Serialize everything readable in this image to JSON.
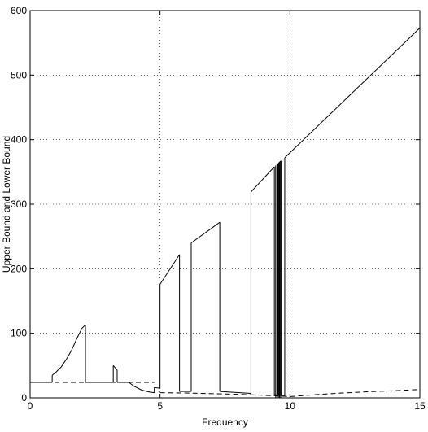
{
  "chart_data": {
    "type": "line",
    "title": "",
    "xlabel": "Frequency",
    "ylabel": "Upper Bound and Lower Bound",
    "xlim": [
      0,
      15
    ],
    "ylim": [
      0,
      600
    ],
    "x_ticks": [
      0,
      5,
      10,
      15
    ],
    "y_ticks": [
      0,
      100,
      200,
      300,
      400,
      500,
      600
    ],
    "x_tick_labels": [
      "0",
      "5",
      "10",
      "15"
    ],
    "y_tick_labels": [
      "0",
      "100",
      "200",
      "300",
      "400",
      "500",
      "600"
    ],
    "grid": true,
    "legend": "none",
    "series": [
      {
        "style": "solid",
        "segments": [
          [
            [
              0,
              24
            ],
            [
              0.85,
              24
            ]
          ],
          [
            [
              0.85,
              35
            ],
            [
              1.0,
              40
            ],
            [
              1.2,
              48
            ],
            [
              1.4,
              60
            ],
            [
              1.6,
              74
            ],
            [
              1.8,
              92
            ],
            [
              2.0,
              108
            ],
            [
              2.13,
              113
            ]
          ],
          [
            [
              2.13,
              24
            ],
            [
              3.2,
              24
            ]
          ],
          [
            [
              3.2,
              50
            ],
            [
              3.35,
              43
            ]
          ],
          [
            [
              3.35,
              24
            ],
            [
              3.8,
              24
            ],
            [
              4.0,
              18
            ],
            [
              4.3,
              12
            ],
            [
              4.6,
              9
            ],
            [
              4.78,
              8
            ]
          ],
          [
            [
              4.78,
              16
            ],
            [
              5.0,
              15
            ]
          ],
          [
            [
              5.0,
              176
            ],
            [
              5.75,
              222
            ]
          ],
          [
            [
              5.75,
              10
            ],
            [
              6.2,
              10
            ]
          ],
          [
            [
              6.2,
              240
            ],
            [
              7.3,
              272
            ]
          ],
          [
            [
              7.3,
              10
            ],
            [
              8.5,
              7
            ]
          ],
          [
            [
              8.5,
              319
            ],
            [
              9.4,
              358
            ]
          ],
          [
            [
              9.4,
              5
            ],
            [
              9.55,
              4
            ]
          ],
          [
            [
              9.55,
              363
            ],
            [
              9.65,
              367
            ]
          ],
          [
            [
              9.65,
              3
            ],
            [
              9.8,
              3
            ]
          ],
          [
            [
              9.8,
              372
            ],
            [
              15,
              573
            ]
          ]
        ],
        "drops": [
          [
            0.85,
            24,
            35
          ],
          [
            2.13,
            113,
            24
          ],
          [
            3.2,
            24,
            50
          ],
          [
            3.35,
            43,
            24
          ],
          [
            4.78,
            8,
            16
          ],
          [
            5.0,
            15,
            176
          ],
          [
            5.75,
            222,
            10
          ],
          [
            6.2,
            10,
            240
          ],
          [
            7.3,
            272,
            10
          ],
          [
            8.5,
            7,
            319
          ],
          [
            9.4,
            358,
            5
          ],
          [
            9.55,
            4,
            363
          ],
          [
            9.65,
            367,
            3
          ],
          [
            9.8,
            3,
            372
          ],
          [
            9.45,
            0,
            360
          ],
          [
            9.5,
            0,
            361
          ],
          [
            9.52,
            0,
            362
          ],
          [
            9.58,
            0,
            364
          ],
          [
            9.6,
            0,
            365
          ],
          [
            9.62,
            0,
            366
          ],
          [
            9.68,
            0,
            368
          ]
        ]
      },
      {
        "style": "dashed",
        "segments": [
          [
            [
              0,
              24
            ],
            [
              4.78,
              24
            ]
          ],
          [
            [
              5.0,
              8
            ],
            [
              6.0,
              7.5
            ],
            [
              7.0,
              6.5
            ],
            [
              8.0,
              5.5
            ],
            [
              9.0,
              4
            ],
            [
              9.5,
              3
            ],
            [
              10.0,
              2
            ],
            [
              11.0,
              5
            ],
            [
              12.0,
              7.5
            ],
            [
              13.0,
              9.5
            ],
            [
              14.0,
              11
            ],
            [
              15.0,
              13
            ]
          ]
        ]
      }
    ]
  }
}
